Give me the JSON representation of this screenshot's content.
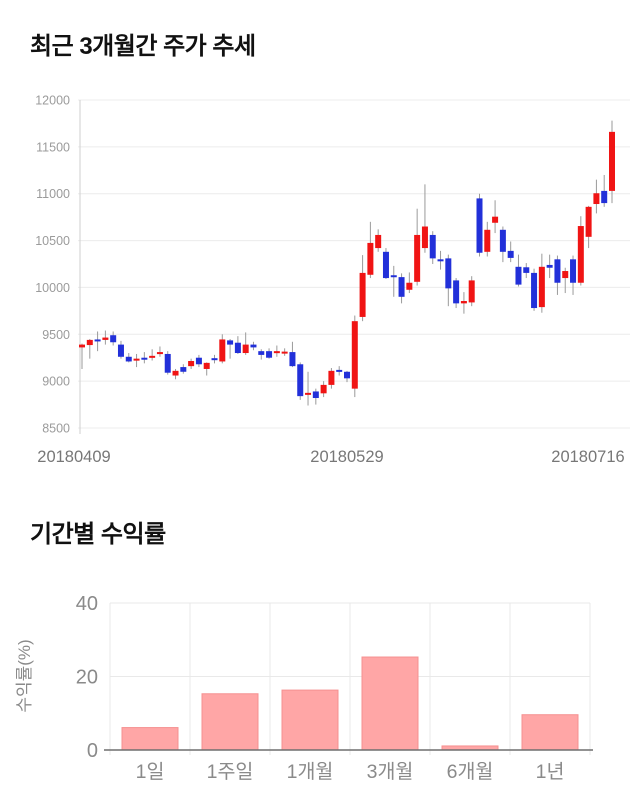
{
  "chart_data": [
    {
      "type": "candlestick",
      "title": "최근 3개월간 주가 추세",
      "ylabel": "",
      "xlabel": "",
      "ylim": [
        8500,
        12000
      ],
      "y_ticks": [
        12000,
        11500,
        11000,
        10500,
        10000,
        9500,
        9000,
        8500
      ],
      "x_tick_labels": [
        "20180409",
        "20180529",
        "20180716"
      ],
      "grid": "horizontal-light",
      "colors": {
        "up": "#f01414",
        "down": "#2230d9",
        "wick": "#9a9a9a"
      },
      "candles_ohlc": [
        [
          9360,
          9400,
          9130,
          9390
        ],
        [
          9385,
          9450,
          9240,
          9440
        ],
        [
          9445,
          9530,
          9320,
          9430
        ],
        [
          9440,
          9540,
          9390,
          9465
        ],
        [
          9490,
          9530,
          9380,
          9415
        ],
        [
          9390,
          9430,
          9240,
          9260
        ],
        [
          9260,
          9300,
          9200,
          9210
        ],
        [
          9225,
          9290,
          9150,
          9240
        ],
        [
          9250,
          9310,
          9190,
          9235
        ],
        [
          9255,
          9340,
          9220,
          9270
        ],
        [
          9290,
          9370,
          9260,
          9310
        ],
        [
          9290,
          9320,
          9070,
          9090
        ],
        [
          9060,
          9130,
          9020,
          9110
        ],
        [
          9150,
          9180,
          9080,
          9100
        ],
        [
          9160,
          9240,
          9130,
          9215
        ],
        [
          9250,
          9280,
          9150,
          9180
        ],
        [
          9130,
          9200,
          9060,
          9195
        ],
        [
          9245,
          9280,
          9190,
          9225
        ],
        [
          9210,
          9500,
          9190,
          9445
        ],
        [
          9435,
          9450,
          9240,
          9390
        ],
        [
          9410,
          9480,
          9290,
          9300
        ],
        [
          9300,
          9520,
          9280,
          9390
        ],
        [
          9390,
          9420,
          9330,
          9360
        ],
        [
          9320,
          9340,
          9230,
          9280
        ],
        [
          9320,
          9350,
          9240,
          9250
        ],
        [
          9310,
          9380,
          9260,
          9320
        ],
        [
          9305,
          9350,
          9270,
          9315
        ],
        [
          9310,
          9420,
          9150,
          9160
        ],
        [
          9180,
          9200,
          8800,
          8840
        ],
        [
          8860,
          9100,
          8740,
          8875
        ],
        [
          8890,
          8920,
          8750,
          8820
        ],
        [
          8870,
          9000,
          8830,
          8960
        ],
        [
          8960,
          9140,
          8920,
          9110
        ],
        [
          9120,
          9160,
          9060,
          9100
        ],
        [
          9100,
          9110,
          8990,
          9030
        ],
        [
          8920,
          9700,
          8830,
          9640
        ],
        [
          9685,
          10345,
          9640,
          10155
        ],
        [
          10135,
          10700,
          10100,
          10475
        ],
        [
          10420,
          10620,
          10380,
          10560
        ],
        [
          10380,
          10420,
          10090,
          10100
        ],
        [
          10130,
          10230,
          9900,
          10110
        ],
        [
          10110,
          10150,
          9830,
          9900
        ],
        [
          9975,
          10160,
          9940,
          10050
        ],
        [
          10060,
          10840,
          10020,
          10560
        ],
        [
          10420,
          11100,
          10370,
          10650
        ],
        [
          10560,
          10600,
          10250,
          10310
        ],
        [
          10300,
          10390,
          10190,
          10280
        ],
        [
          10310,
          10350,
          9800,
          9990
        ],
        [
          10075,
          10100,
          9780,
          9830
        ],
        [
          9830,
          9950,
          9720,
          9855
        ],
        [
          9840,
          10120,
          9800,
          10075
        ],
        [
          10950,
          11000,
          10330,
          10370
        ],
        [
          10380,
          10700,
          10330,
          10615
        ],
        [
          10690,
          10930,
          10580,
          10755
        ],
        [
          10615,
          10650,
          10270,
          10380
        ],
        [
          10390,
          10490,
          10270,
          10315
        ],
        [
          10220,
          10350,
          10010,
          10030
        ],
        [
          10215,
          10260,
          10100,
          10155
        ],
        [
          10155,
          10200,
          9750,
          9780
        ],
        [
          9790,
          10360,
          9730,
          10220
        ],
        [
          10240,
          10350,
          10100,
          10210
        ],
        [
          10300,
          10340,
          9920,
          10050
        ],
        [
          10100,
          10210,
          9940,
          10175
        ],
        [
          10300,
          10340,
          9920,
          10050
        ],
        [
          10050,
          10760,
          10020,
          10655
        ],
        [
          10540,
          10870,
          10420,
          10860
        ],
        [
          10890,
          11150,
          10790,
          11005
        ],
        [
          11030,
          11200,
          10860,
          10900
        ],
        [
          11030,
          11780,
          10900,
          11660
        ]
      ]
    },
    {
      "type": "bar",
      "title": "기간별 수익률",
      "ylabel": "수익률(%)",
      "xlabel": "",
      "categories": [
        "1일",
        "1주일",
        "1개월",
        "3개월",
        "6개월",
        "1년"
      ],
      "values": [
        6.1,
        15.3,
        16.3,
        25.3,
        1.1,
        9.6
      ],
      "ylim": [
        0,
        40
      ],
      "y_ticks": [
        40,
        20,
        0
      ],
      "grid": "both-light",
      "legend": "none",
      "bar_color": "#ffa6a6",
      "bar_border_color": "#f59090"
    }
  ]
}
